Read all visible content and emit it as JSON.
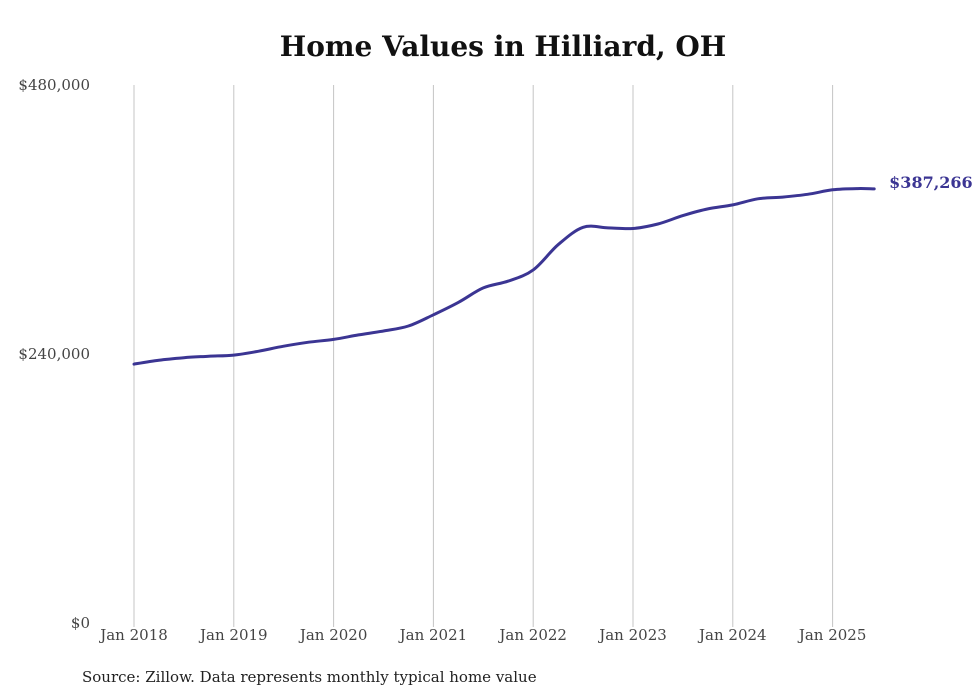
{
  "chart_data": {
    "type": "line",
    "title": "Home Values in Hilliard, OH",
    "xlabel": "",
    "ylabel": "",
    "x_ticks": [
      "Jan 2018",
      "Jan 2019",
      "Jan 2020",
      "Jan 2021",
      "Jan 2022",
      "Jan 2023",
      "Jan 2024",
      "Jan 2025"
    ],
    "y_ticks": [
      "$0",
      "$240,000",
      "$480,000"
    ],
    "y_tick_values": [
      0,
      240000,
      480000
    ],
    "ylim": [
      0,
      480000
    ],
    "xlim": [
      "2018-01",
      "2025-12"
    ],
    "grid": "vertical",
    "legend": "none",
    "end_label": "$387,266",
    "series": [
      {
        "color": "#3b3593",
        "x": [
          "2018-01",
          "2018-04",
          "2018-07",
          "2018-10",
          "2019-01",
          "2019-04",
          "2019-07",
          "2019-10",
          "2020-01",
          "2020-04",
          "2020-07",
          "2020-10",
          "2021-01",
          "2021-04",
          "2021-07",
          "2021-10",
          "2022-01",
          "2022-04",
          "2022-07",
          "2022-10",
          "2023-01",
          "2023-04",
          "2023-07",
          "2023-10",
          "2024-01",
          "2024-04",
          "2024-07",
          "2024-10",
          "2025-01",
          "2025-04",
          "2025-06"
        ],
        "values": [
          231000,
          234500,
          236700,
          238000,
          239000,
          242500,
          247000,
          250500,
          253000,
          257000,
          260500,
          265000,
          275000,
          286000,
          299000,
          305000,
          315000,
          337500,
          353000,
          352500,
          352000,
          356000,
          363500,
          369500,
          373000,
          378500,
          380000,
          382500,
          386500,
          387600,
          387266
        ]
      }
    ]
  },
  "source_note": "Source: Zillow. Data represents monthly typical home value"
}
